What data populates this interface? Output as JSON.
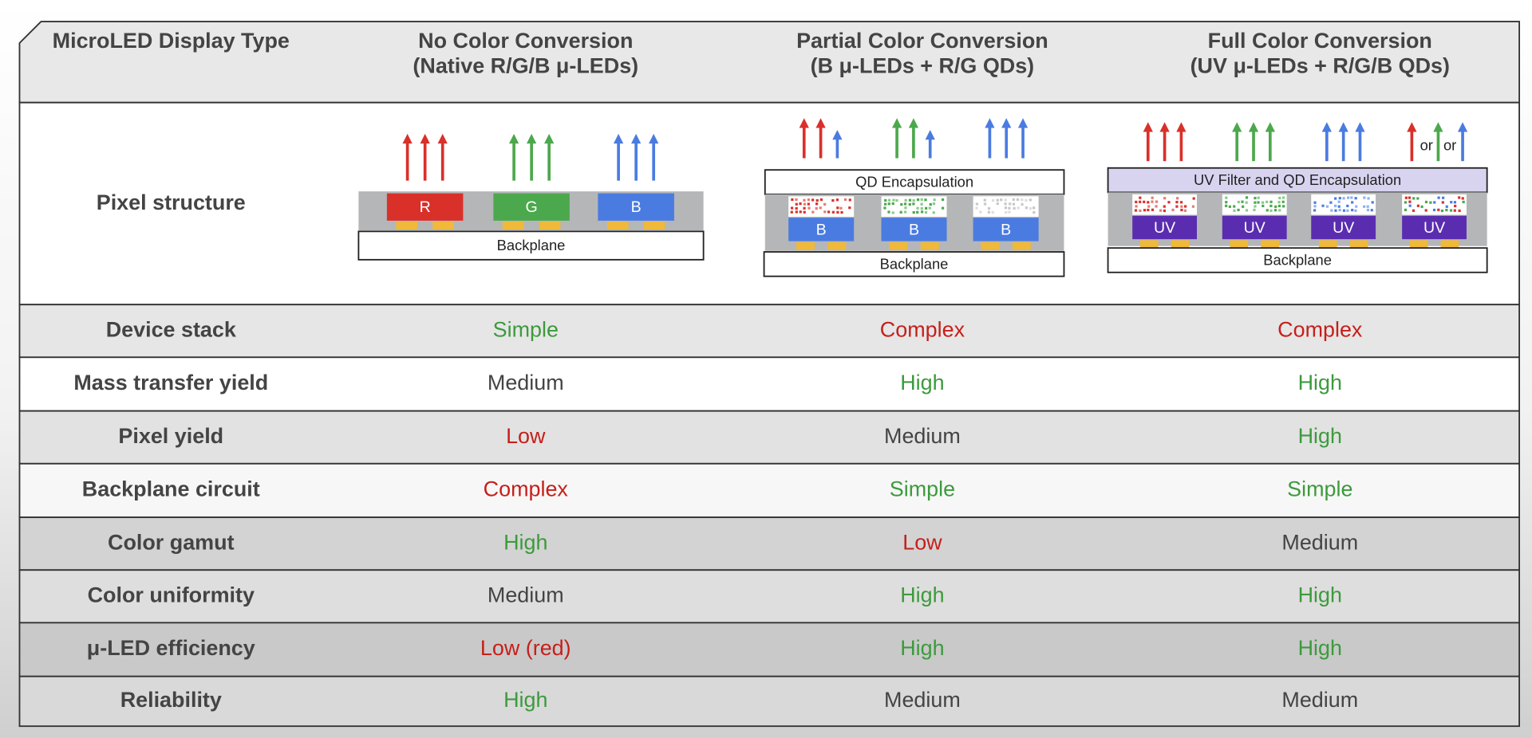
{
  "header": {
    "corner": "MicroLED Display Type",
    "columns": [
      [
        "No Color Conversion",
        "(Native R/G/B μ-LEDs)"
      ],
      [
        "Partial Color Conversion",
        "(B μ-LEDs + R/G QDs)"
      ],
      [
        "Full Color Conversion",
        "(UV μ-LEDs + R/G/B QDs)"
      ]
    ]
  },
  "pixel_structure": {
    "label": "Pixel structure",
    "diagrams": [
      {
        "chips": [
          "R",
          "G",
          "B"
        ],
        "backplane": "Backplane"
      },
      {
        "encapsulation": "QD Encapsulation",
        "chips": [
          "B",
          "B",
          "B"
        ],
        "backplane": "Backplane"
      },
      {
        "encapsulation": "UV Filter and QD Encapsulation",
        "chips": [
          "UV",
          "UV",
          "UV",
          "UV"
        ],
        "or_labels": [
          "or",
          "or"
        ],
        "backplane": "Backplane"
      }
    ]
  },
  "rows": [
    {
      "label": "Device stack",
      "cells": [
        "Simple",
        "Complex",
        "Complex"
      ],
      "colors": [
        "#3d9a3d",
        "#c61f1a",
        "#c61f1a"
      ]
    },
    {
      "label": "Mass transfer yield",
      "cells": [
        "Medium",
        "High",
        "High"
      ],
      "colors": [
        "#444444",
        "#3d9a3d",
        "#3d9a3d"
      ]
    },
    {
      "label": "Pixel yield",
      "cells": [
        "Low",
        "Medium",
        "High"
      ],
      "colors": [
        "#c61f1a",
        "#444444",
        "#3d9a3d"
      ]
    },
    {
      "label": "Backplane circuit",
      "cells": [
        "Complex",
        "Simple",
        "Simple"
      ],
      "colors": [
        "#c61f1a",
        "#3d9a3d",
        "#3d9a3d"
      ]
    },
    {
      "label": "Color gamut",
      "cells": [
        "High",
        "Low",
        "Medium"
      ],
      "colors": [
        "#3d9a3d",
        "#c61f1a",
        "#444444"
      ]
    },
    {
      "label": "Color uniformity",
      "cells": [
        "Medium",
        "High",
        "High"
      ],
      "colors": [
        "#444444",
        "#3d9a3d",
        "#3d9a3d"
      ]
    },
    {
      "label": "μ-LED efficiency",
      "cells": [
        "Low (red)",
        "High",
        "High"
      ],
      "colors": [
        "#c61f1a",
        "#3d9a3d",
        "#3d9a3d"
      ]
    },
    {
      "label": "Reliability",
      "cells": [
        "High",
        "Medium",
        "Medium"
      ],
      "colors": [
        "#3d9a3d",
        "#444444",
        "#444444"
      ]
    }
  ]
}
